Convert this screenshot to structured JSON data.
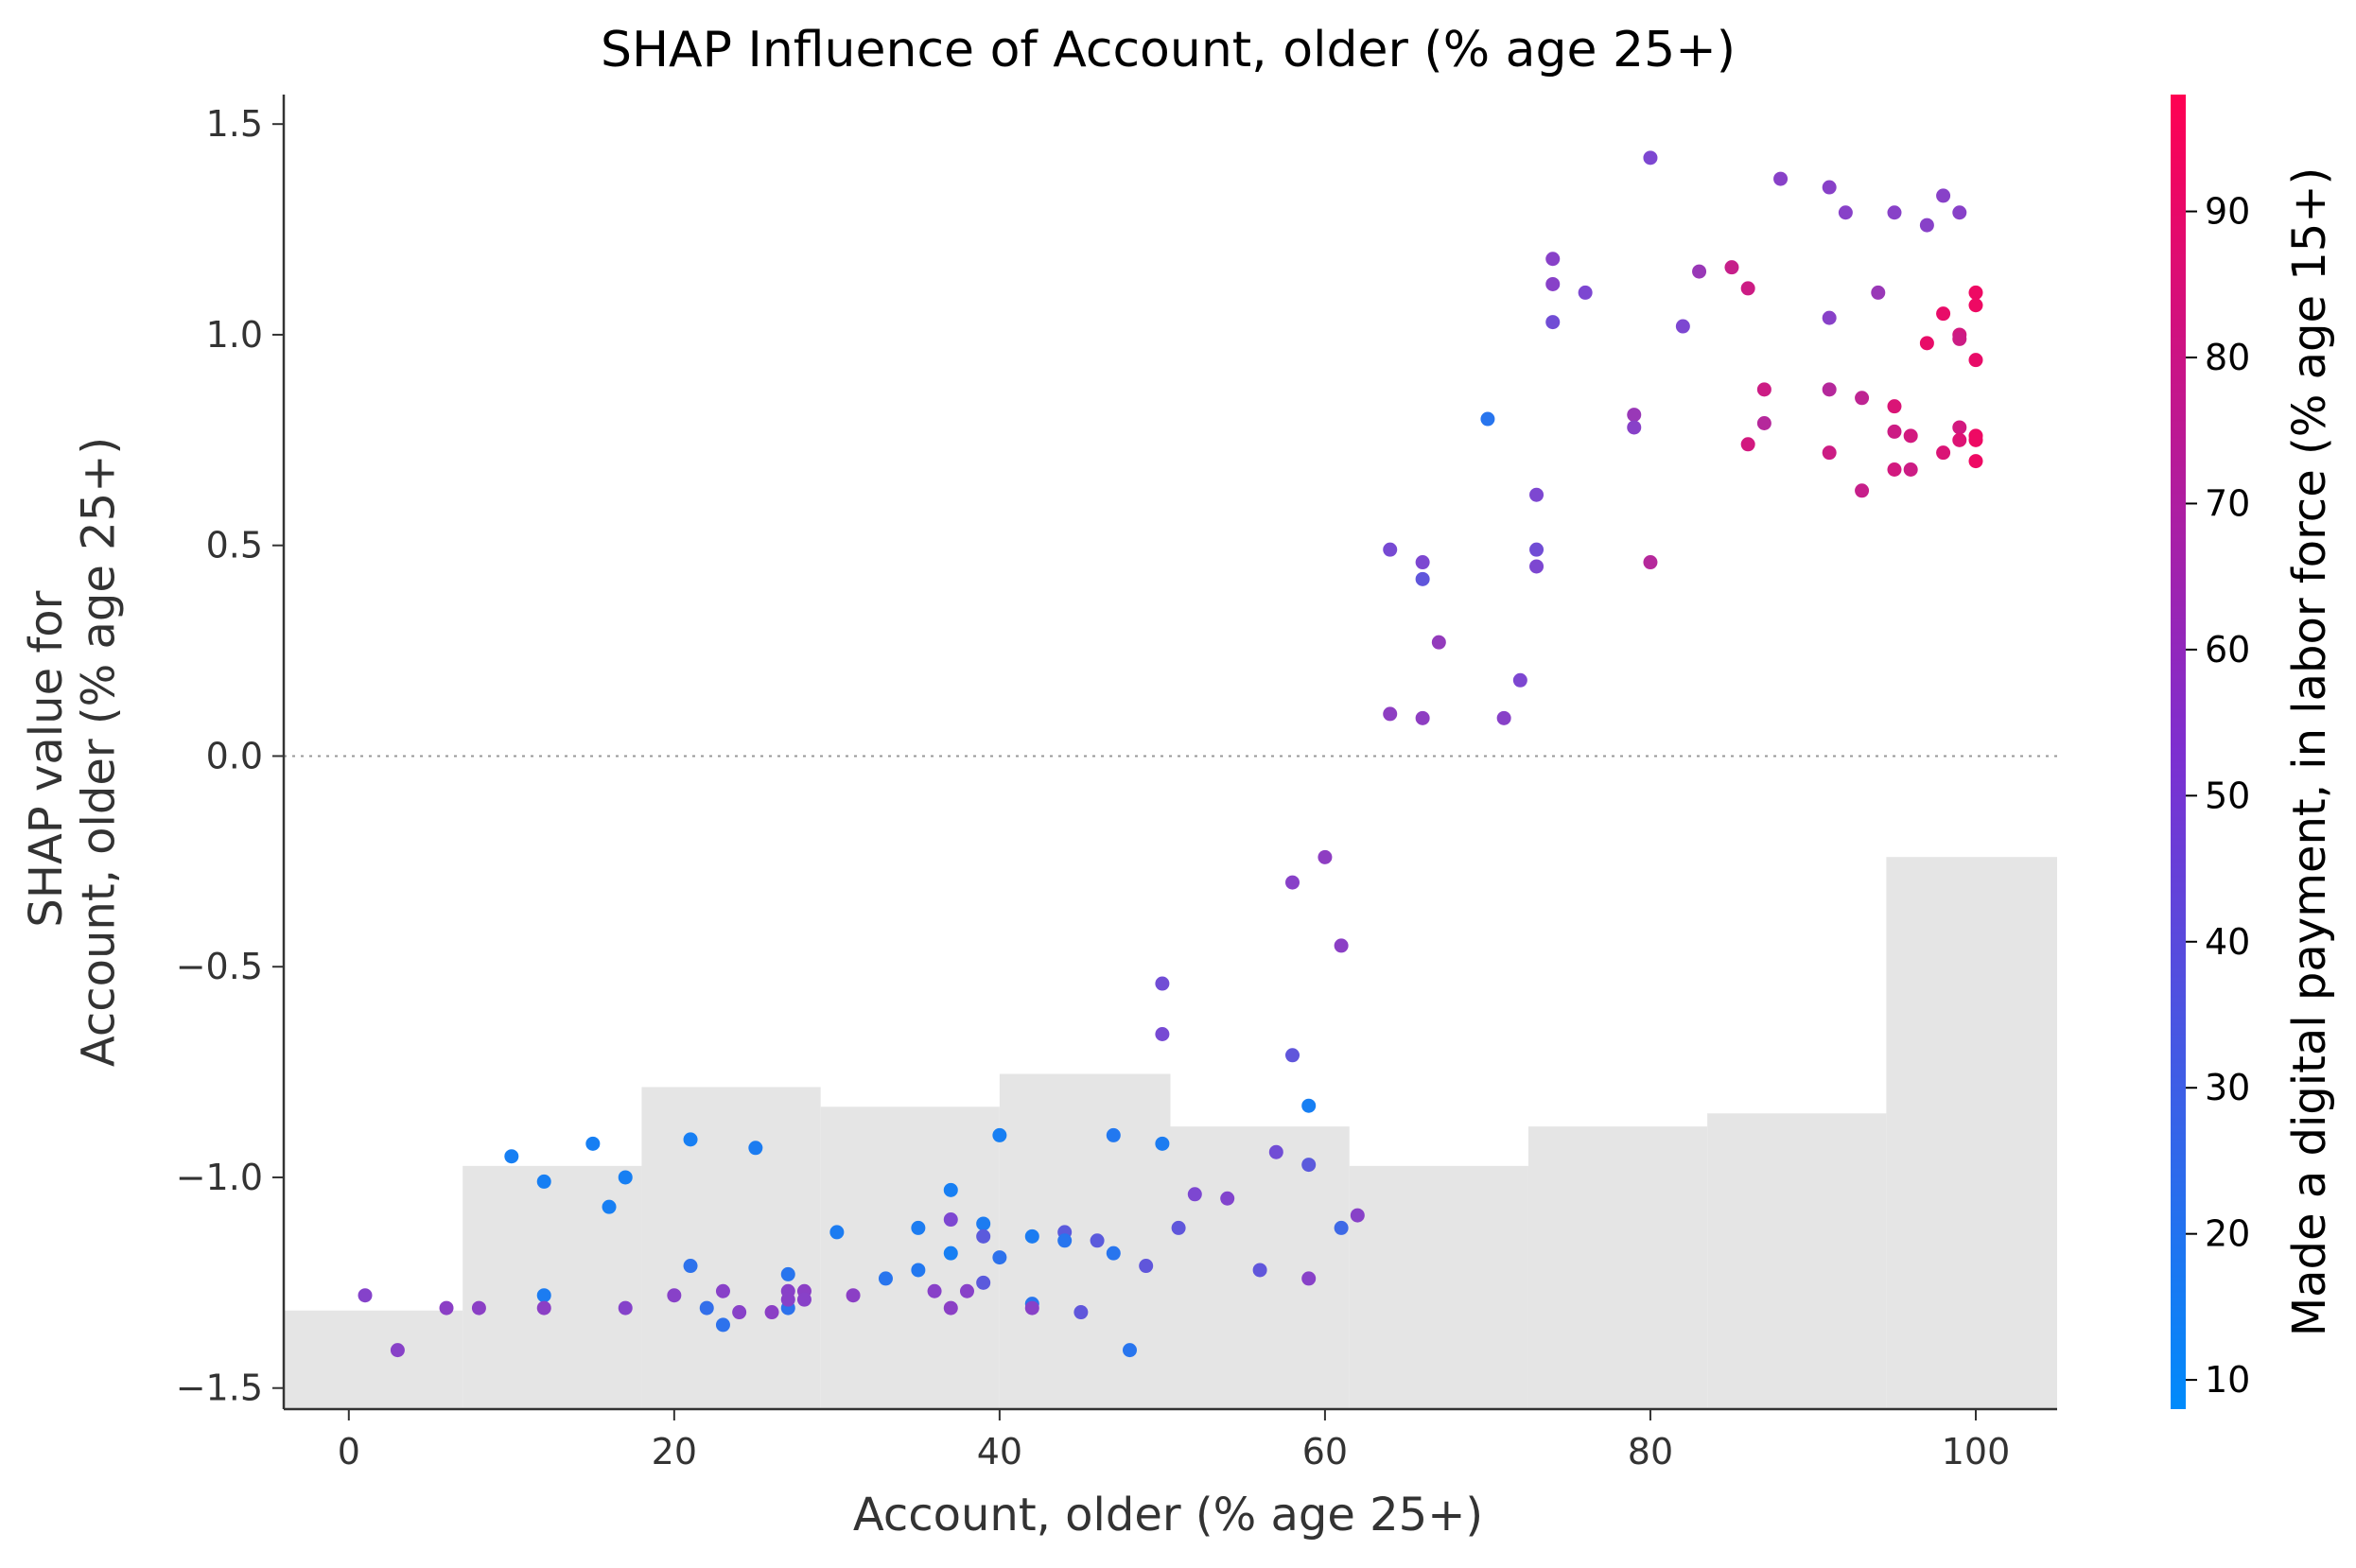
{
  "chart_data": {
    "type": "scatter",
    "title": "SHAP Influence of Account, older (% age 25+)",
    "xlabel": "Account, older (% age 25+)",
    "ylabel_lines": [
      "SHAP value for",
      "Account, older (% age 25+)"
    ],
    "xlim": [
      -4,
      105
    ],
    "ylim": [
      -1.55,
      1.57
    ],
    "xticks": [
      0,
      20,
      40,
      60,
      80,
      100
    ],
    "yticks": [
      1.5,
      1.0,
      0.5,
      0.0,
      -0.5,
      -1.0,
      -1.5
    ],
    "ytick_labels": [
      "1.5",
      "1.0",
      "0.5",
      "0.0",
      "−0.5",
      "−1.0",
      "−1.5"
    ],
    "zero_line": true,
    "grid": false,
    "colorbar": {
      "label": "Made a digital payment, in labor force (% age 15+)",
      "range": [
        8,
        98
      ],
      "ticks": [
        10,
        20,
        30,
        40,
        50,
        60,
        70,
        80,
        90
      ],
      "colors": [
        "#008bfb",
        "#ff0052"
      ]
    },
    "histogram": {
      "color": "#e5e5e5",
      "edges": [
        -4,
        7,
        18,
        29,
        40,
        50.5,
        61.5,
        72.5,
        83.5,
        94.5,
        105
      ],
      "heights": [
        0.075,
        0.185,
        0.245,
        0.23,
        0.255,
        0.215,
        0.185,
        0.215,
        0.225,
        0.42
      ]
    },
    "points": [
      [
        1,
        -1.28,
        55
      ],
      [
        3,
        -1.41,
        56
      ],
      [
        6,
        -1.31,
        57
      ],
      [
        8,
        -1.31,
        57
      ],
      [
        10,
        -0.95,
        16
      ],
      [
        12,
        -1.01,
        16
      ],
      [
        12,
        -1.28,
        18
      ],
      [
        12,
        -1.31,
        57
      ],
      [
        15,
        -0.92,
        16
      ],
      [
        16,
        -1.07,
        16
      ],
      [
        17,
        -1.0,
        16
      ],
      [
        17,
        -1.31,
        55
      ],
      [
        20,
        -1.28,
        56
      ],
      [
        21,
        -0.91,
        16
      ],
      [
        21,
        -1.21,
        24
      ],
      [
        22,
        -1.31,
        26
      ],
      [
        23,
        -1.35,
        24
      ],
      [
        23,
        -1.27,
        56
      ],
      [
        24,
        -1.32,
        56
      ],
      [
        25,
        -0.93,
        18
      ],
      [
        26,
        -1.32,
        57
      ],
      [
        27,
        -1.23,
        22
      ],
      [
        27,
        -1.31,
        24
      ],
      [
        27,
        -1.27,
        56
      ],
      [
        27,
        -1.29,
        56
      ],
      [
        28,
        -1.27,
        57
      ],
      [
        28,
        -1.29,
        56
      ],
      [
        30,
        -1.13,
        18
      ],
      [
        31,
        -1.28,
        57
      ],
      [
        33,
        -1.24,
        22
      ],
      [
        35,
        -1.12,
        18
      ],
      [
        35,
        -1.22,
        20
      ],
      [
        36,
        -1.27,
        56
      ],
      [
        37,
        -1.03,
        16
      ],
      [
        37,
        -1.1,
        52
      ],
      [
        37,
        -1.18,
        16
      ],
      [
        37,
        -1.31,
        57
      ],
      [
        38,
        -1.27,
        56
      ],
      [
        39,
        -1.11,
        18
      ],
      [
        39,
        -1.14,
        40
      ],
      [
        39,
        -1.25,
        40
      ],
      [
        40,
        -0.9,
        16
      ],
      [
        40,
        -1.19,
        24
      ],
      [
        42,
        -1.14,
        18
      ],
      [
        42,
        -1.3,
        22
      ],
      [
        42,
        -1.31,
        56
      ],
      [
        44,
        -1.13,
        40
      ],
      [
        44,
        -1.15,
        22
      ],
      [
        45,
        -1.32,
        42
      ],
      [
        46,
        -1.15,
        40
      ],
      [
        47,
        -0.9,
        20
      ],
      [
        47,
        -1.18,
        22
      ],
      [
        48,
        -1.41,
        22
      ],
      [
        49,
        -1.21,
        42
      ],
      [
        50,
        -0.92,
        18
      ],
      [
        50,
        -0.54,
        48
      ],
      [
        50,
        -0.66,
        50
      ],
      [
        51,
        -1.12,
        42
      ],
      [
        52,
        -1.04,
        52
      ],
      [
        54,
        -1.05,
        54
      ],
      [
        56,
        -1.22,
        42
      ],
      [
        57,
        -0.94,
        48
      ],
      [
        58,
        -0.3,
        56
      ],
      [
        58,
        -0.71,
        42
      ],
      [
        59,
        -0.83,
        16
      ],
      [
        59,
        -0.97,
        40
      ],
      [
        59,
        -1.24,
        56
      ],
      [
        60,
        -0.24,
        58
      ],
      [
        61,
        -0.45,
        57
      ],
      [
        61,
        -1.12,
        30
      ],
      [
        62,
        -1.09,
        56
      ],
      [
        64,
        0.1,
        58
      ],
      [
        64,
        0.49,
        50
      ],
      [
        66,
        0.46,
        52
      ],
      [
        66,
        0.42,
        42
      ],
      [
        66,
        0.09,
        58
      ],
      [
        67,
        0.27,
        60
      ],
      [
        70,
        0.8,
        22
      ],
      [
        71,
        0.09,
        56
      ],
      [
        72,
        0.18,
        52
      ],
      [
        73,
        0.62,
        52
      ],
      [
        73,
        0.49,
        48
      ],
      [
        73,
        0.45,
        52
      ],
      [
        74,
        1.18,
        56
      ],
      [
        74,
        1.12,
        56
      ],
      [
        74,
        1.03,
        48
      ],
      [
        76,
        1.1,
        52
      ],
      [
        79,
        0.81,
        62
      ],
      [
        79,
        0.78,
        56
      ],
      [
        80,
        1.42,
        52
      ],
      [
        80,
        0.46,
        72
      ],
      [
        82,
        1.02,
        52
      ],
      [
        83,
        1.15,
        62
      ],
      [
        85,
        1.16,
        78
      ],
      [
        86,
        1.11,
        80
      ],
      [
        86,
        0.74,
        82
      ],
      [
        87,
        0.87,
        80
      ],
      [
        87,
        0.79,
        72
      ],
      [
        88,
        1.37,
        56
      ],
      [
        91,
        1.35,
        56
      ],
      [
        91,
        1.04,
        56
      ],
      [
        91,
        0.87,
        72
      ],
      [
        91,
        0.72,
        80
      ],
      [
        92,
        1.29,
        56
      ],
      [
        93,
        0.85,
        75
      ],
      [
        93,
        0.63,
        78
      ],
      [
        94,
        1.1,
        62
      ],
      [
        95,
        1.29,
        56
      ],
      [
        95,
        0.83,
        85
      ],
      [
        95,
        0.77,
        80
      ],
      [
        95,
        0.68,
        82
      ],
      [
        96,
        0.76,
        82
      ],
      [
        96,
        0.68,
        80
      ],
      [
        97,
        1.26,
        56
      ],
      [
        97,
        0.98,
        90
      ],
      [
        98,
        1.33,
        56
      ],
      [
        98,
        1.05,
        90
      ],
      [
        98,
        0.72,
        85
      ],
      [
        99,
        1.29,
        56
      ],
      [
        99,
        1.0,
        82
      ],
      [
        99,
        0.99,
        80
      ],
      [
        99,
        0.78,
        82
      ],
      [
        99,
        0.75,
        86
      ],
      [
        100,
        1.1,
        92
      ],
      [
        100,
        1.07,
        92
      ],
      [
        100,
        0.94,
        90
      ],
      [
        100,
        0.76,
        92
      ],
      [
        100,
        0.75,
        92
      ],
      [
        100,
        0.7,
        92
      ]
    ]
  }
}
